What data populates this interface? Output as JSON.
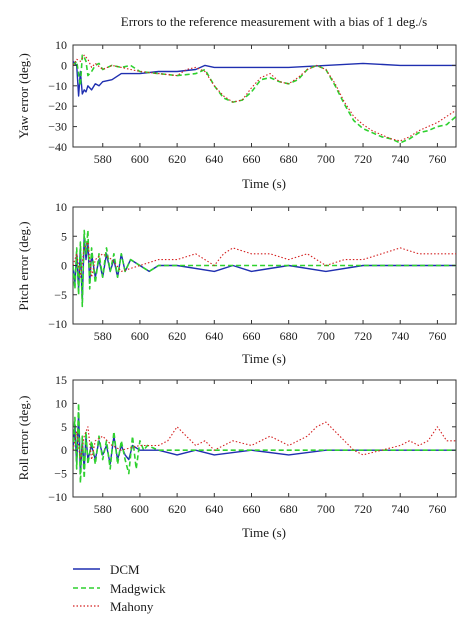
{
  "title": "Errors to the reference measurement with a bias of 1 deg./s",
  "colors": {
    "DCM": "#1f2fb0",
    "Madgwick": "#2ed12e",
    "Mahony": "#d42020",
    "axis": "#333333"
  },
  "legend": {
    "placement": "bottom-left"
  },
  "chart_data": [
    {
      "type": "line",
      "title": "Errors to the reference measurement with a bias of 1 deg./s",
      "xlabel": "Time (s)",
      "ylabel": "Yaw error (deg.)",
      "xlim": [
        564,
        770
      ],
      "ylim": [
        -40,
        10
      ],
      "xticks": [
        "580",
        "600",
        "620",
        "640",
        "660",
        "680",
        "700",
        "720",
        "740",
        "760"
      ],
      "yticks": [
        "10",
        "0",
        "−10",
        "−20",
        "−30",
        "−40"
      ],
      "series": [
        {
          "name": "DCM",
          "x": [
            564,
            566,
            567,
            568,
            569,
            570,
            571,
            572,
            574,
            576,
            578,
            580,
            585,
            590,
            600,
            610,
            620,
            630,
            635,
            640,
            660,
            680,
            700,
            720,
            740,
            760,
            770
          ],
          "y": [
            2,
            0,
            -15,
            -3,
            -14,
            -12,
            -13,
            -10,
            -12,
            -9,
            -10,
            -8,
            -7,
            -4,
            -4,
            -3,
            -3,
            -2,
            0,
            -1,
            -1,
            -1,
            0,
            1,
            0,
            0,
            0
          ]
        },
        {
          "name": "Madgwick",
          "x": [
            564,
            566,
            568,
            569,
            570,
            571,
            572,
            574,
            576,
            578,
            580,
            585,
            590,
            595,
            600,
            610,
            620,
            630,
            635,
            640,
            645,
            650,
            655,
            660,
            665,
            670,
            675,
            680,
            685,
            690,
            695,
            700,
            705,
            710,
            715,
            720,
            725,
            730,
            735,
            740,
            745,
            750,
            755,
            760,
            765,
            770
          ],
          "y": [
            0,
            2,
            -10,
            5,
            4,
            2,
            -5,
            -3,
            0,
            1,
            -2,
            0,
            -1,
            0,
            -3,
            -4,
            -5,
            -4,
            -2,
            -10,
            -16,
            -18,
            -17,
            -13,
            -7,
            -6,
            -8,
            -9,
            -7,
            -2,
            0,
            -2,
            -10,
            -19,
            -27,
            -31,
            -33,
            -35,
            -36,
            -38,
            -36,
            -33,
            -32,
            -30,
            -29,
            -25
          ]
        },
        {
          "name": "Mahony",
          "x": [
            564,
            566,
            568,
            570,
            572,
            574,
            576,
            580,
            585,
            590,
            600,
            610,
            620,
            625,
            630,
            635,
            640,
            645,
            650,
            655,
            660,
            665,
            670,
            675,
            680,
            685,
            690,
            695,
            700,
            705,
            710,
            715,
            720,
            725,
            730,
            735,
            740,
            745,
            750,
            755,
            760,
            765,
            770
          ],
          "y": [
            0,
            3,
            2,
            5,
            3,
            -1,
            1,
            -2,
            0,
            -1,
            -3,
            -4,
            -5,
            -2,
            -1,
            -3,
            -10,
            -15,
            -18,
            -17,
            -11,
            -6,
            -4,
            -8,
            -9,
            -6,
            -2,
            0,
            -2,
            -9,
            -18,
            -25,
            -29,
            -32,
            -34,
            -36,
            -37,
            -35,
            -32,
            -30,
            -28,
            -25,
            -22
          ]
        }
      ]
    },
    {
      "type": "line",
      "xlabel": "Time (s)",
      "ylabel": "Pitch error (deg.)",
      "xlim": [
        564,
        770
      ],
      "ylim": [
        -10,
        10
      ],
      "xticks": [
        "580",
        "600",
        "620",
        "640",
        "660",
        "680",
        "700",
        "720",
        "740",
        "760"
      ],
      "yticks": [
        "10",
        "5",
        "0",
        "−5",
        "−10"
      ],
      "series": [
        {
          "name": "DCM",
          "x": [
            564,
            565,
            566,
            567,
            568,
            569,
            570,
            571,
            572,
            573,
            574,
            576,
            578,
            580,
            582,
            584,
            586,
            588,
            590,
            592,
            595,
            600,
            605,
            610,
            620,
            640,
            650,
            660,
            680,
            700,
            720,
            740,
            760,
            770
          ],
          "y": [
            0,
            -3,
            2,
            -4,
            3,
            -6,
            5,
            1,
            4,
            -3,
            2,
            -2,
            1,
            -2,
            2,
            -1,
            1,
            -2,
            2,
            -1,
            1,
            0,
            -1,
            0,
            0,
            -1,
            0,
            -1,
            0,
            -1,
            0,
            0,
            0,
            0
          ]
        },
        {
          "name": "Madgwick",
          "x": [
            564,
            565,
            566,
            567,
            568,
            569,
            570,
            571,
            572,
            573,
            574,
            576,
            578,
            580,
            582,
            584,
            586,
            588,
            590,
            592,
            595,
            600,
            605,
            610,
            620,
            630,
            640,
            650,
            660,
            670,
            680,
            690,
            700,
            710,
            720,
            730,
            740,
            750,
            760,
            770
          ],
          "y": [
            0,
            -4,
            3,
            -5,
            4,
            -7,
            6,
            2,
            6,
            -4,
            3,
            -3,
            2,
            -2,
            3,
            -1,
            2,
            -2,
            2,
            -1,
            1,
            0,
            -1,
            0,
            0,
            0,
            0,
            0,
            0,
            0,
            0,
            0,
            0,
            0,
            0,
            0,
            0,
            0,
            0,
            0
          ]
        },
        {
          "name": "Mahony",
          "x": [
            564,
            566,
            568,
            570,
            572,
            574,
            576,
            580,
            585,
            590,
            600,
            610,
            620,
            630,
            640,
            645,
            650,
            660,
            670,
            680,
            690,
            700,
            710,
            720,
            730,
            740,
            750,
            760,
            770
          ],
          "y": [
            0,
            2,
            -2,
            3,
            4,
            -2,
            1,
            2,
            1,
            -1,
            0,
            1,
            1,
            2,
            0,
            2,
            3,
            2,
            2,
            1,
            2,
            0,
            1,
            1,
            2,
            3,
            2,
            2,
            2
          ]
        }
      ]
    },
    {
      "type": "line",
      "xlabel": "Time (s)",
      "ylabel": "Roll error (deg.)",
      "xlim": [
        564,
        770
      ],
      "ylim": [
        -10,
        15
      ],
      "xticks": [
        "580",
        "600",
        "620",
        "640",
        "660",
        "680",
        "700",
        "720",
        "740",
        "760"
      ],
      "yticks": [
        "15",
        "10",
        "5",
        "0",
        "−5",
        "−10"
      ],
      "series": [
        {
          "name": "DCM",
          "x": [
            564,
            565,
            566,
            567,
            568,
            569,
            570,
            571,
            572,
            574,
            576,
            578,
            580,
            582,
            584,
            586,
            588,
            590,
            592,
            594,
            596,
            600,
            610,
            620,
            630,
            640,
            660,
            680,
            700,
            720,
            740,
            760,
            770
          ],
          "y": [
            0,
            5,
            -3,
            8,
            -5,
            2,
            -4,
            3,
            -2,
            1,
            -2,
            2,
            -1,
            1,
            -3,
            3,
            -2,
            1,
            -1,
            -2,
            1,
            0,
            0,
            -1,
            0,
            -1,
            0,
            -1,
            0,
            0,
            0,
            0,
            0
          ]
        },
        {
          "name": "Madgwick",
          "x": [
            564,
            565,
            566,
            567,
            568,
            569,
            570,
            571,
            572,
            574,
            576,
            578,
            580,
            582,
            584,
            586,
            588,
            590,
            592,
            594,
            596,
            598,
            600,
            602,
            604,
            610,
            620,
            630,
            640,
            650,
            660,
            670,
            680,
            690,
            700,
            710,
            720,
            730,
            740,
            750,
            760,
            770
          ],
          "y": [
            0,
            7,
            -4,
            10,
            -7,
            3,
            -6,
            4,
            -3,
            2,
            -3,
            3,
            -2,
            2,
            -4,
            4,
            -3,
            2,
            -2,
            -5,
            3,
            -4,
            2,
            0,
            1,
            0,
            0,
            0,
            0,
            0,
            0,
            0,
            0,
            0,
            0,
            0,
            0,
            0,
            0,
            0,
            0,
            0
          ]
        },
        {
          "name": "Mahony",
          "x": [
            564,
            566,
            568,
            570,
            572,
            574,
            576,
            580,
            585,
            590,
            600,
            610,
            615,
            620,
            625,
            630,
            635,
            640,
            645,
            650,
            660,
            665,
            670,
            675,
            680,
            690,
            695,
            700,
            705,
            710,
            715,
            720,
            730,
            740,
            745,
            750,
            755,
            760,
            765,
            770
          ],
          "y": [
            0,
            4,
            -2,
            3,
            5,
            -2,
            2,
            3,
            1,
            0,
            1,
            1,
            2,
            5,
            3,
            1,
            2,
            0,
            1,
            2,
            1,
            2,
            3,
            2,
            1,
            3,
            5,
            6,
            4,
            2,
            0,
            -1,
            0,
            1,
            2,
            1,
            2,
            5,
            2,
            2
          ]
        }
      ]
    }
  ]
}
